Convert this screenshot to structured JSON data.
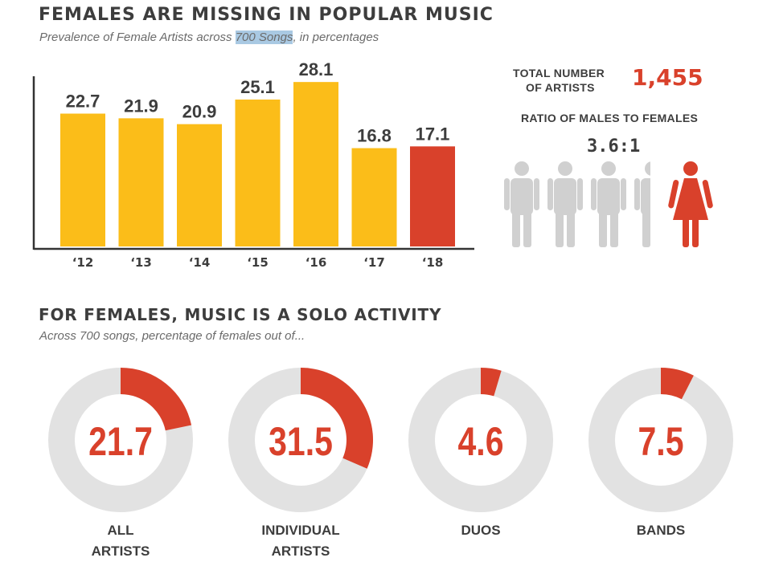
{
  "header": {
    "title": "FEMALES ARE MISSING IN POPULAR MUSIC",
    "subtitle_pre": "Prevalence of Female Artists across ",
    "subtitle_highlight": "700 Songs",
    "subtitle_post": ", in percentages"
  },
  "stats": {
    "total_label_line1": "TOTAL NUMBER",
    "total_label_line2": "OF ARTISTS",
    "total_value": "1,455",
    "ratio_label": "RATIO OF MALES TO FEMALES",
    "ratio_value": "3.6:1"
  },
  "section2": {
    "title": "FOR FEMALES, MUSIC IS A SOLO ACTIVITY",
    "subtitle": "Across 700 songs, percentage of females out of..."
  },
  "colors": {
    "bar": "#fbbd19",
    "highlight": "#d9412b",
    "gray": "#d0d0d0",
    "ring_bg": "#e2e2e2"
  },
  "chart_data": [
    {
      "type": "bar",
      "categories": [
        "‘12",
        "‘13",
        "‘14",
        "‘15",
        "‘16",
        "‘17",
        "‘18"
      ],
      "values": [
        22.7,
        21.9,
        20.9,
        25.1,
        28.1,
        16.8,
        17.1
      ],
      "value_labels": [
        "22.7",
        "21.9",
        "20.9",
        "25.1",
        "28.1",
        "16.8",
        "17.1"
      ],
      "highlight_index": 6,
      "ylim": [
        0,
        30
      ]
    },
    {
      "type": "pie",
      "donuts": [
        {
          "value": 21.7,
          "display": "21.7",
          "label_line1": "ALL",
          "label_line2": "ARTISTS"
        },
        {
          "value": 31.5,
          "display": "31.5",
          "label_line1": "INDIVIDUAL",
          "label_line2": "ARTISTS"
        },
        {
          "value": 4.6,
          "display": "4.6",
          "label_line1": "DUOS",
          "label_line2": ""
        },
        {
          "value": 7.5,
          "display": "7.5",
          "label_line1": "BANDS",
          "label_line2": ""
        }
      ]
    }
  ]
}
